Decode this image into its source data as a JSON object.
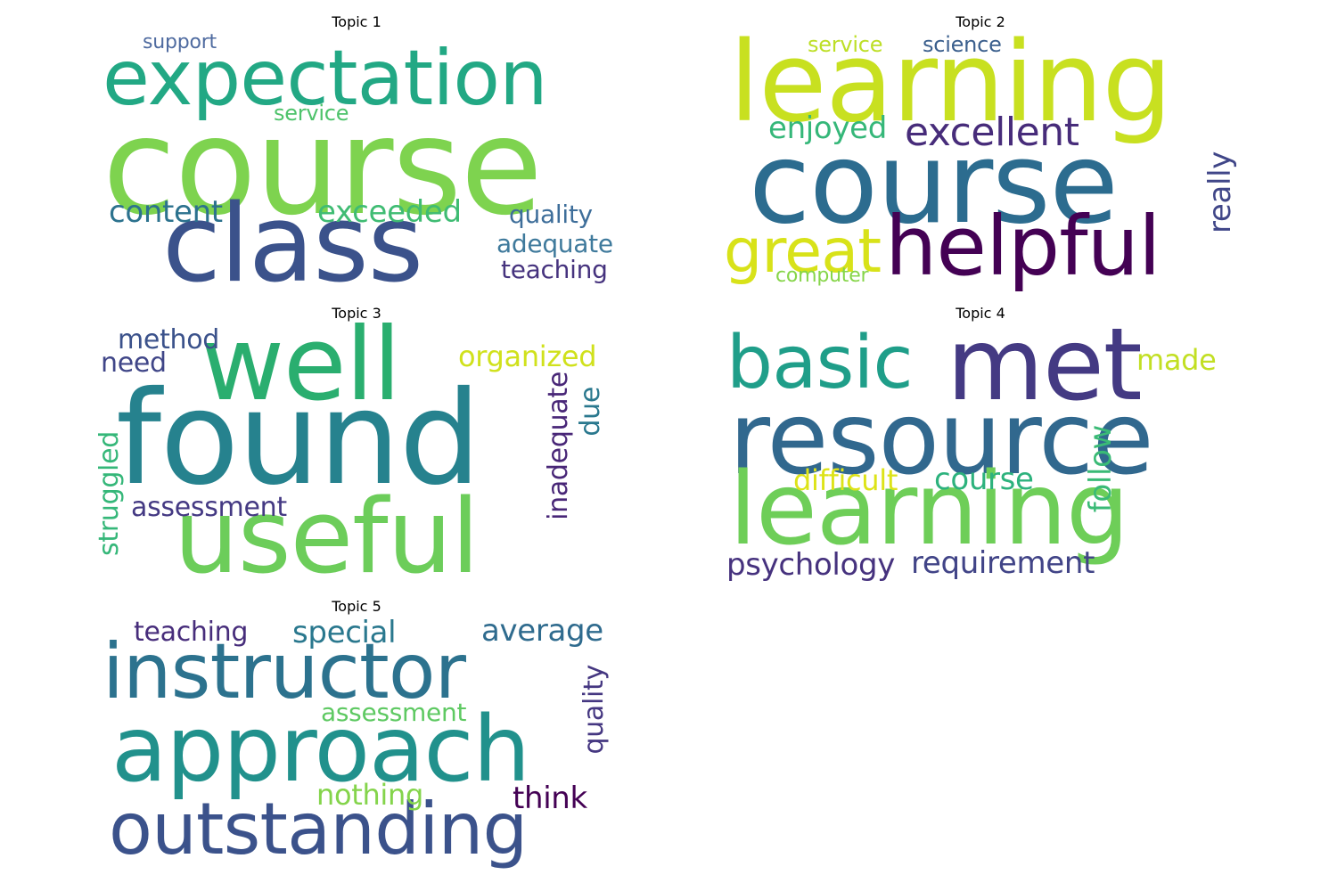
{
  "topics": [
    {
      "title": "Topic 1",
      "words": [
        {
          "text": "course",
          "color": "#7ed34f"
        },
        {
          "text": "expectation",
          "color": "#22a884"
        },
        {
          "text": "class",
          "color": "#3b528b"
        },
        {
          "text": "support",
          "color": "#4f6ba0"
        },
        {
          "text": "service",
          "color": "#4ec36b"
        },
        {
          "text": "content",
          "color": "#2c728e"
        },
        {
          "text": "exceeded",
          "color": "#3fbc73"
        },
        {
          "text": "quality",
          "color": "#3e6e9a"
        },
        {
          "text": "adequate",
          "color": "#3f7a9c"
        },
        {
          "text": "teaching",
          "color": "#46337e"
        }
      ]
    },
    {
      "title": "Topic 2",
      "words": [
        {
          "text": "learning",
          "color": "#c8e020"
        },
        {
          "text": "course",
          "color": "#2c6c8f"
        },
        {
          "text": "helpful",
          "color": "#440154"
        },
        {
          "text": "great",
          "color": "#d8e219"
        },
        {
          "text": "excellent",
          "color": "#472c7a"
        },
        {
          "text": "enjoyed",
          "color": "#35b779"
        },
        {
          "text": "service",
          "color": "#bddf26"
        },
        {
          "text": "science",
          "color": "#3b5f8d"
        },
        {
          "text": "really",
          "color": "#404688"
        },
        {
          "text": "computer",
          "color": "#86d549"
        }
      ]
    },
    {
      "title": "Topic 3",
      "words": [
        {
          "text": "found",
          "color": "#26828e"
        },
        {
          "text": "well",
          "color": "#2aae6f"
        },
        {
          "text": "useful",
          "color": "#6ccd5a"
        },
        {
          "text": "method",
          "color": "#3b528b"
        },
        {
          "text": "need",
          "color": "#404688"
        },
        {
          "text": "organized",
          "color": "#d0e11c"
        },
        {
          "text": "inadequate",
          "color": "#482677"
        },
        {
          "text": "due",
          "color": "#2a788e"
        },
        {
          "text": "struggled",
          "color": "#35b779"
        },
        {
          "text": "assessment",
          "color": "#443983"
        }
      ]
    },
    {
      "title": "Topic 4",
      "words": [
        {
          "text": "resource",
          "color": "#31688e"
        },
        {
          "text": "learning",
          "color": "#6ece58"
        },
        {
          "text": "met",
          "color": "#443a83"
        },
        {
          "text": "basic",
          "color": "#1f9e89"
        },
        {
          "text": "made",
          "color": "#c2df23"
        },
        {
          "text": "difficult",
          "color": "#dde318"
        },
        {
          "text": "course",
          "color": "#2db27d"
        },
        {
          "text": "follow",
          "color": "#3aba76"
        },
        {
          "text": "psychology",
          "color": "#46327e"
        },
        {
          "text": "requirement",
          "color": "#414487"
        }
      ]
    },
    {
      "title": "Topic 5",
      "words": [
        {
          "text": "instructor",
          "color": "#2c728e"
        },
        {
          "text": "approach",
          "color": "#21918c"
        },
        {
          "text": "outstanding",
          "color": "#3b528b"
        },
        {
          "text": "teaching",
          "color": "#472d7b"
        },
        {
          "text": "special",
          "color": "#2a788e"
        },
        {
          "text": "average",
          "color": "#2f6b8e"
        },
        {
          "text": "quality",
          "color": "#453781"
        },
        {
          "text": "assessment",
          "color": "#5ec962"
        },
        {
          "text": "nothing",
          "color": "#84d44b"
        },
        {
          "text": "think",
          "color": "#440154"
        }
      ]
    }
  ]
}
